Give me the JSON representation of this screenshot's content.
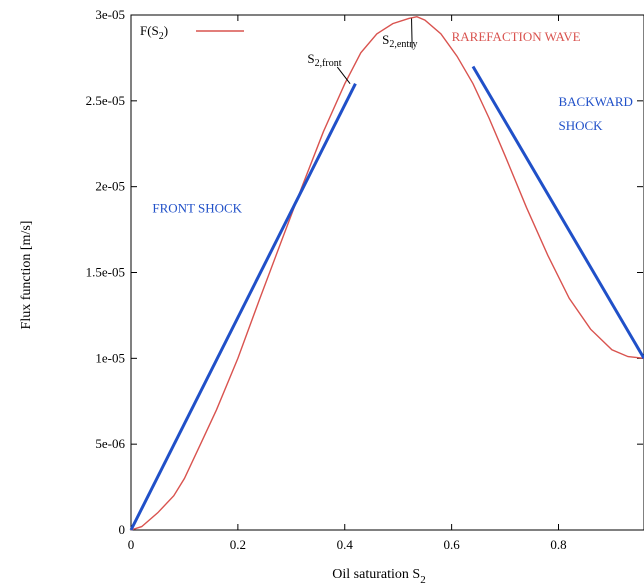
{
  "chart_data": {
    "type": "line",
    "xlabel": "Oil saturation S",
    "xlabel_sub": "2",
    "ylabel": "Flux function [m/s]",
    "xlim": [
      0,
      0.96
    ],
    "ylim": [
      0,
      3e-05
    ],
    "x_ticks": [
      0,
      0.2,
      0.4,
      0.6,
      0.8
    ],
    "x_tick_labels": [
      "0",
      "0.2",
      "0.4",
      "0.6",
      "0.8"
    ],
    "y_ticks": [
      0,
      5e-06,
      1e-05,
      1.5e-05,
      2e-05,
      2.5e-05,
      3e-05
    ],
    "y_tick_labels": [
      "0",
      "5e-06",
      "1e-05",
      "1.5e-05",
      "2e-05",
      "2.5e-05",
      "3e-05"
    ],
    "grid": false,
    "legend": {
      "position": "top-left",
      "label": "F(S",
      "label_sub": "2",
      "label_end": ")"
    },
    "series": [
      {
        "name": "F(S2)",
        "color": "#d9534f",
        "x": [
          0,
          0.02,
          0.05,
          0.08,
          0.1,
          0.13,
          0.16,
          0.2,
          0.24,
          0.28,
          0.32,
          0.36,
          0.4,
          0.43,
          0.46,
          0.49,
          0.52,
          0.535,
          0.55,
          0.58,
          0.61,
          0.64,
          0.67,
          0.7,
          0.74,
          0.78,
          0.82,
          0.86,
          0.9,
          0.93,
          0.96
        ],
        "y": [
          0,
          2e-07,
          1e-06,
          2e-06,
          3e-06,
          5e-06,
          7e-06,
          1e-05,
          1.34e-05,
          1.67e-05,
          2e-05,
          2.32e-05,
          2.6e-05,
          2.78e-05,
          2.89e-05,
          2.95e-05,
          2.98e-05,
          2.99e-05,
          2.97e-05,
          2.89e-05,
          2.76e-05,
          2.6e-05,
          2.4e-05,
          2.18e-05,
          1.88e-05,
          1.6e-05,
          1.35e-05,
          1.17e-05,
          1.05e-05,
          1.01e-05,
          1e-05
        ]
      }
    ],
    "shock_lines": [
      {
        "color": "#2050c8",
        "x": [
          0,
          0.42
        ],
        "y": [
          0,
          2.6e-05
        ]
      },
      {
        "color": "#2050c8",
        "x": [
          0.64,
          0.96
        ],
        "y": [
          2.7e-05,
          1e-05
        ]
      }
    ],
    "annotations": [
      {
        "text": "S",
        "sub": "2,front",
        "x": 0.33,
        "y": 2.72e-05,
        "target": [
          0.41,
          2.6e-05
        ],
        "color": "#000000"
      },
      {
        "text": "S",
        "sub": "2,entry",
        "x": 0.47,
        "y": 2.83e-05,
        "target": [
          0.525,
          2.98e-05
        ],
        "color": "#000000"
      },
      {
        "text": "RAREFACTION WAVE",
        "x": 0.6,
        "y": 2.85e-05,
        "color": "#d9534f"
      },
      {
        "text": "BACKWARD",
        "x": 0.8,
        "y": 2.47e-05,
        "color": "#2050c8"
      },
      {
        "text": "SHOCK",
        "x": 0.8,
        "y": 2.33e-05,
        "color": "#2050c8"
      },
      {
        "text": "FRONT SHOCK",
        "x": 0.04,
        "y": 1.85e-05,
        "color": "#2050c8"
      }
    ]
  }
}
